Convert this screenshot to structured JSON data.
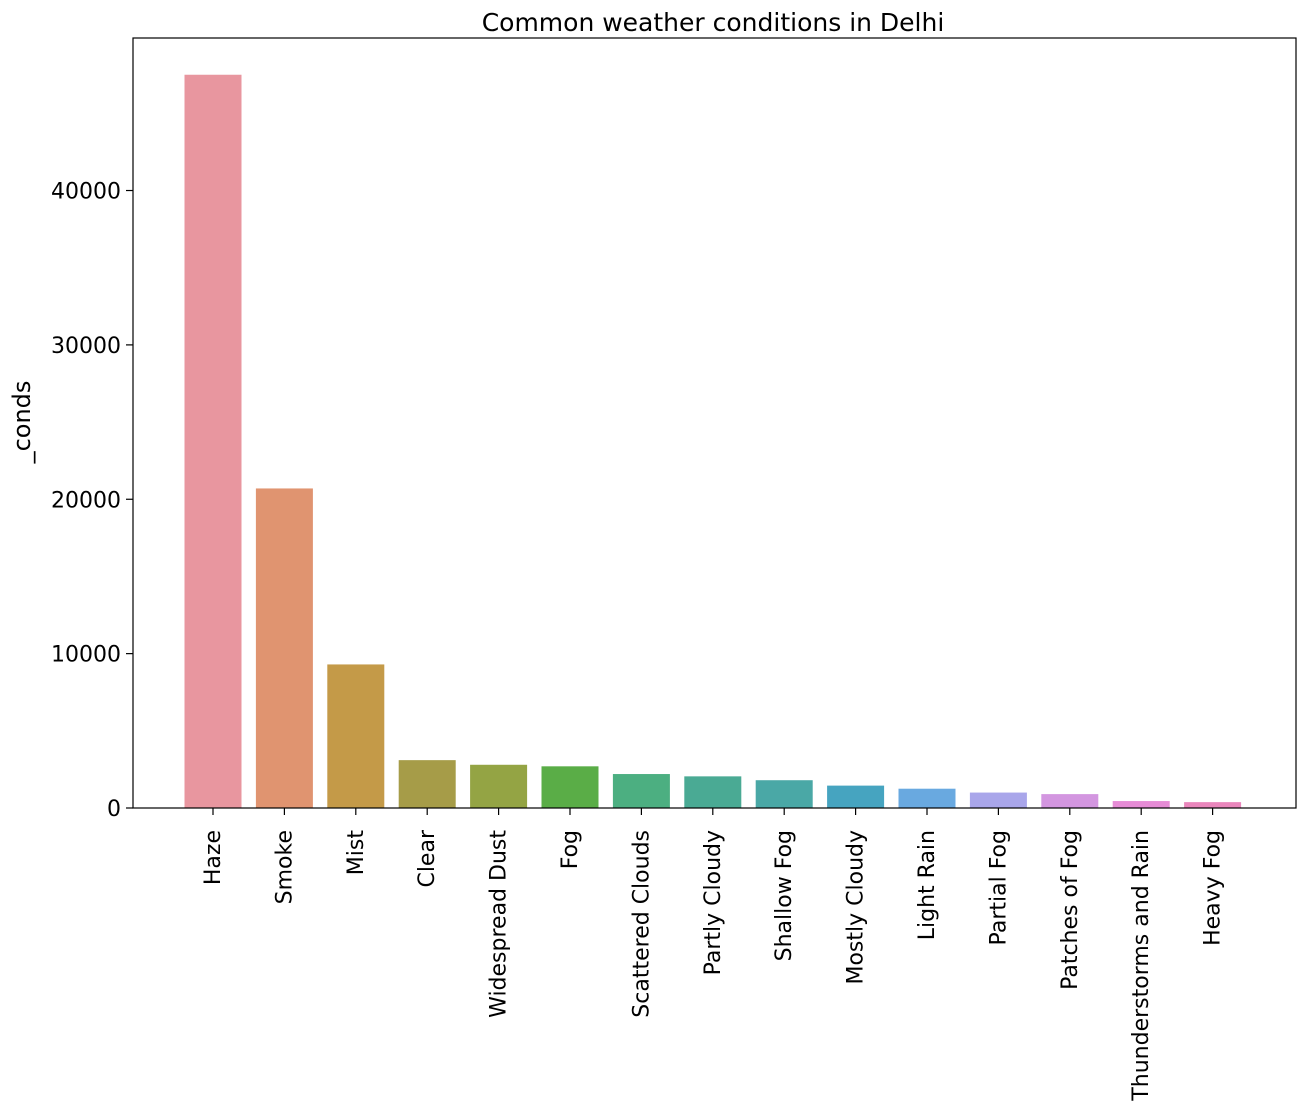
{
  "chart_data": {
    "type": "bar",
    "title": "Common weather conditions in Delhi",
    "xlabel": "",
    "ylabel": "_conds",
    "categories": [
      "Haze",
      "Smoke",
      "Mist",
      "Clear",
      "Widespread Dust",
      "Fog",
      "Scattered Clouds",
      "Partly Cloudy",
      "Shallow Fog",
      "Mostly Cloudy",
      "Light Rain",
      "Partial Fog",
      "Patches of Fog",
      "Thunderstorms and Rain",
      "Heavy Fog"
    ],
    "values": [
      47500,
      20700,
      9300,
      3100,
      2800,
      2700,
      2200,
      2050,
      1800,
      1450,
      1250,
      1000,
      900,
      450,
      380
    ],
    "colors": [
      "#e8969f",
      "#e09470",
      "#c49a48",
      "#a69c48",
      "#94a444",
      "#5aad47",
      "#4caf81",
      "#4aaa94",
      "#4aa8a6",
      "#46a4c0",
      "#69a9e0",
      "#a9a6ea",
      "#d396e0",
      "#e68cd6",
      "#ea86bc"
    ],
    "yticks": [
      0,
      10000,
      20000,
      30000,
      40000
    ],
    "ylim": [
      0,
      49880
    ],
    "grid": false,
    "legend": "none"
  }
}
